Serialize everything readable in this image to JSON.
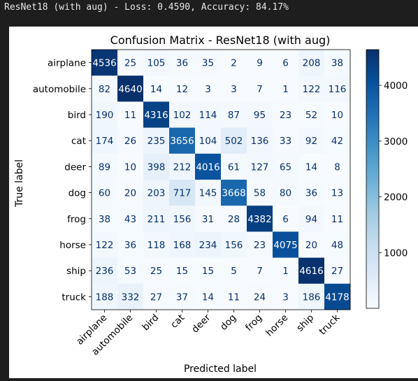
{
  "output": {
    "status_line": "ResNet18 (with aug) - Loss: 0.4590, Accuracy: 84.17%"
  },
  "chart_data": {
    "type": "heatmap",
    "title": "Confusion Matrix - ResNet18 (with aug)",
    "xlabel": "Predicted label",
    "ylabel": "True label",
    "labels": [
      "airplane",
      "automobile",
      "bird",
      "cat",
      "deer",
      "dog",
      "frog",
      "horse",
      "ship",
      "truck"
    ],
    "matrix": [
      [
        4536,
        25,
        105,
        36,
        35,
        2,
        9,
        6,
        208,
        38
      ],
      [
        82,
        4640,
        14,
        12,
        3,
        3,
        7,
        1,
        122,
        116
      ],
      [
        190,
        11,
        4316,
        102,
        114,
        87,
        95,
        23,
        52,
        10
      ],
      [
        174,
        26,
        235,
        3656,
        104,
        502,
        136,
        33,
        92,
        42
      ],
      [
        89,
        10,
        398,
        212,
        4016,
        61,
        127,
        65,
        14,
        8
      ],
      [
        60,
        20,
        203,
        717,
        145,
        3668,
        58,
        80,
        36,
        13
      ],
      [
        38,
        43,
        211,
        156,
        31,
        28,
        4382,
        6,
        94,
        11
      ],
      [
        122,
        36,
        118,
        168,
        234,
        156,
        23,
        4075,
        20,
        48
      ],
      [
        236,
        53,
        25,
        15,
        15,
        5,
        7,
        1,
        4616,
        27
      ],
      [
        188,
        332,
        27,
        37,
        14,
        11,
        24,
        3,
        186,
        4178
      ]
    ],
    "colormap": "Blues",
    "value_range": [
      1,
      4640
    ],
    "colorbar_ticks": [
      1000,
      2000,
      3000,
      4000
    ],
    "colorbar_position": "right"
  }
}
